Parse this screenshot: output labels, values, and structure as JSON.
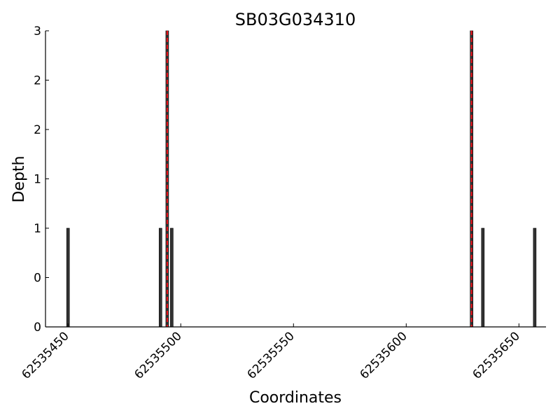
{
  "chart_data": {
    "type": "bar",
    "title": "SB03G034310",
    "xlabel": "Coordinates",
    "ylabel": "Depth",
    "xlim": [
      62535440,
      62535662
    ],
    "ylim": [
      0,
      3
    ],
    "x_ticks": [
      62535450,
      62535500,
      62535550,
      62535600,
      62535650
    ],
    "y_ticks": [
      {
        "value": 0.0,
        "label": "0"
      },
      {
        "value": 0.5,
        "label": "0"
      },
      {
        "value": 1.0,
        "label": "1"
      },
      {
        "value": 1.5,
        "label": "1"
      },
      {
        "value": 2.0,
        "label": "2"
      },
      {
        "value": 2.5,
        "label": "2"
      },
      {
        "value": 3.0,
        "label": "3"
      }
    ],
    "bars": [
      {
        "x": 62535450,
        "value": 1
      },
      {
        "x": 62535491,
        "value": 1
      },
      {
        "x": 62535494,
        "value": 3
      },
      {
        "x": 62535496,
        "value": 1
      },
      {
        "x": 62535629,
        "value": 3
      },
      {
        "x": 62535634,
        "value": 1
      },
      {
        "x": 62535657,
        "value": 1
      }
    ],
    "bar_color": "#333333",
    "markers": [
      {
        "x": 62535494,
        "color": "#e8141c"
      },
      {
        "x": 62535629,
        "color": "#e8141c"
      }
    ],
    "grid": false
  }
}
